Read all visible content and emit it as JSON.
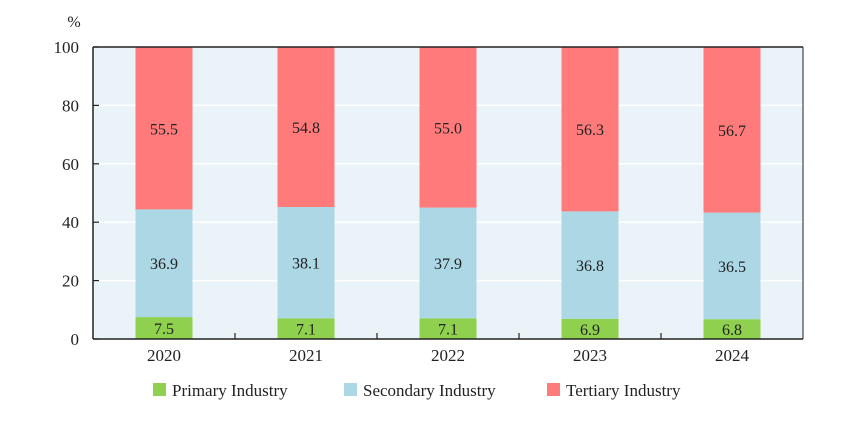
{
  "chart_data": {
    "type": "bar",
    "stacked": true,
    "ylabel": "%",
    "ylim": [
      0,
      100
    ],
    "yticks": [
      0,
      20,
      40,
      60,
      80,
      100
    ],
    "grid": true,
    "legend_position": "bottom",
    "categories": [
      "2020",
      "2021",
      "2022",
      "2023",
      "2024"
    ],
    "series": [
      {
        "name": "Primary Industry",
        "color": "#8fd14f",
        "values": [
          7.5,
          7.1,
          7.1,
          6.9,
          6.8
        ],
        "labels": [
          "7.5",
          "7.1",
          "7.1",
          "6.9",
          "6.8"
        ]
      },
      {
        "name": "Secondary Industry",
        "color": "#acd8e5",
        "values": [
          36.9,
          38.1,
          37.9,
          36.8,
          36.5
        ],
        "labels": [
          "36.9",
          "38.1",
          "37.9",
          "36.8",
          "36.5"
        ]
      },
      {
        "name": "Tertiary Industry",
        "color": "#ff7b7b",
        "values": [
          55.5,
          54.8,
          55.0,
          56.3,
          56.7
        ],
        "labels": [
          "55.5",
          "54.8",
          "55.0",
          "56.3",
          "56.7"
        ]
      }
    ],
    "plot_background": "#eaf4f8"
  }
}
